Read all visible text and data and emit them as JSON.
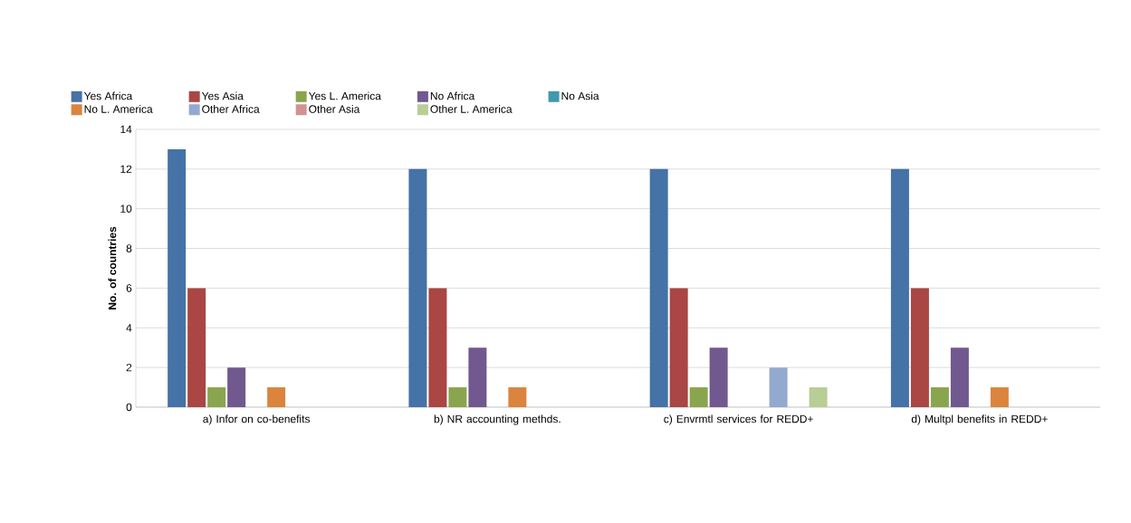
{
  "chart_data": {
    "type": "bar",
    "ylabel": "**No. of countries**",
    "categories": [
      "a) Infor on co-benefits",
      "b) NR accounting methds.",
      "c) Envrmtl services for REDD+",
      "d) Multpl benefits in REDD+"
    ],
    "series": [
      {
        "name": "Yes Africa",
        "color": "#4572a7",
        "values": [
          13,
          12,
          12,
          12
        ]
      },
      {
        "name": "Yes Asia",
        "color": "#aa4643",
        "values": [
          6,
          6,
          6,
          6
        ]
      },
      {
        "name": "Yes L. America",
        "color": "#89a54e",
        "values": [
          1,
          1,
          1,
          1
        ]
      },
      {
        "name": "No Africa",
        "color": "#71588f",
        "values": [
          2,
          3,
          3,
          3
        ]
      },
      {
        "name": "No Asia",
        "color": "#4198af",
        "values": [
          0,
          0,
          0,
          0
        ]
      },
      {
        "name": "No L. America",
        "color": "#db843d",
        "values": [
          1,
          1,
          0,
          1
        ]
      },
      {
        "name": "Other Africa",
        "color": "#93a9cf",
        "values": [
          0,
          0,
          2,
          0
        ]
      },
      {
        "name": "Other Asia",
        "color": "#d19392",
        "values": [
          0,
          0,
          0,
          0
        ]
      },
      {
        "name": "Other L. America",
        "color": "#b9cd96",
        "values": [
          0,
          0,
          1,
          0
        ]
      }
    ],
    "ylim": [
      0,
      14
    ],
    "yticks": [
      0,
      2,
      4,
      6,
      8,
      10,
      12,
      14
    ],
    "grid": "y",
    "legend": "top"
  }
}
